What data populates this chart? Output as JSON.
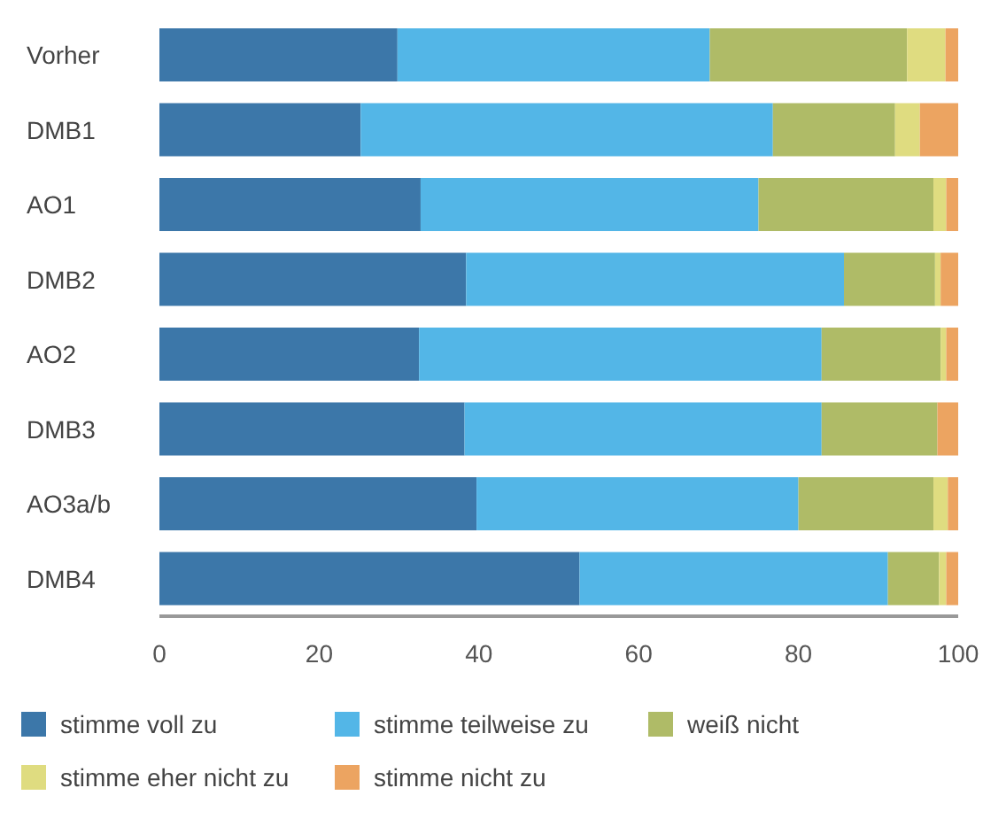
{
  "chart_data": {
    "type": "bar",
    "orientation": "horizontal",
    "stacked": true,
    "categories": [
      "Vorher",
      "DMB1",
      "AO1",
      "DMB2",
      "AO2",
      "DMB3",
      "AO3a/b",
      "DMB4"
    ],
    "series": [
      {
        "name": "stimme voll zu",
        "color": "#3c77a9",
        "values": [
          29.8,
          25.2,
          32.7,
          38.4,
          32.5,
          38.2,
          39.7,
          52.6
        ]
      },
      {
        "name": "stimme teilweise zu",
        "color": "#53b6e7",
        "values": [
          39.1,
          51.6,
          42.3,
          47.3,
          50.4,
          44.7,
          40.3,
          38.6
        ]
      },
      {
        "name": "weiß nicht",
        "color": "#afbb67",
        "values": [
          24.7,
          15.3,
          21.9,
          11.4,
          14.9,
          14.5,
          16.9,
          6.4
        ]
      },
      {
        "name": "stimme eher nicht zu",
        "color": "#dfdc80",
        "values": [
          4.8,
          3.1,
          1.6,
          0.7,
          0.7,
          0,
          1.8,
          0.9
        ]
      },
      {
        "name": "stimme nicht zu",
        "color": "#eca461",
        "values": [
          1.6,
          4.8,
          1.5,
          2.2,
          1.5,
          2.6,
          1.3,
          1.5
        ]
      }
    ],
    "xlim": [
      0,
      100
    ],
    "xticks": [
      0,
      20,
      40,
      60,
      80,
      100
    ],
    "grid": false,
    "legend": "bottom"
  }
}
